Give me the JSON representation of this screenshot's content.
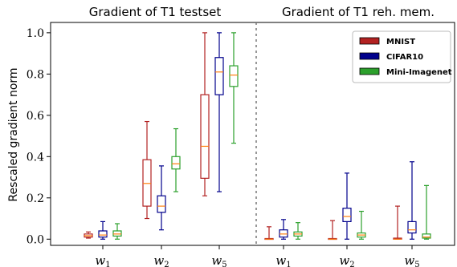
{
  "chart_data": {
    "type": "box",
    "titles": [
      "Gradient of T1 testset",
      "Gradient of T1 reh. mem."
    ],
    "ylabel": "Rescaled gradient norm",
    "ylim": [
      -0.03,
      1.05
    ],
    "yticks": [
      "0.0",
      "0.2",
      "0.4",
      "0.6",
      "0.8",
      "1.0"
    ],
    "ytick_values": [
      0.0,
      0.2,
      0.4,
      0.6,
      0.8,
      1.0
    ],
    "groups": [
      {
        "panel": 0,
        "label": "w",
        "sub": "1"
      },
      {
        "panel": 0,
        "label": "w",
        "sub": "2"
      },
      {
        "panel": 0,
        "label": "w",
        "sub": "5"
      },
      {
        "panel": 1,
        "label": "w",
        "sub": "1"
      },
      {
        "panel": 1,
        "label": "w",
        "sub": "2"
      },
      {
        "panel": 1,
        "label": "w",
        "sub": "5"
      }
    ],
    "series": [
      {
        "name": "MNIST",
        "color": "#b22222",
        "boxes": [
          {
            "whislo": 0.005,
            "q1": 0.01,
            "med": 0.017,
            "q3": 0.025,
            "whishi": 0.035
          },
          {
            "whislo": 0.1,
            "q1": 0.16,
            "med": 0.27,
            "q3": 0.385,
            "whishi": 0.57
          },
          {
            "whislo": 0.21,
            "q1": 0.295,
            "med": 0.45,
            "q3": 0.7,
            "whishi": 1.0
          },
          {
            "whislo": 0.0,
            "q1": 0.0,
            "med": 0.0,
            "q3": 0.003,
            "whishi": 0.06
          },
          {
            "whislo": 0.0,
            "q1": 0.0,
            "med": 0.0,
            "q3": 0.003,
            "whishi": 0.09
          },
          {
            "whislo": 0.0,
            "q1": 0.0,
            "med": 0.0,
            "q3": 0.005,
            "whishi": 0.16
          }
        ]
      },
      {
        "name": "CIFAR10",
        "color": "#00008b",
        "boxes": [
          {
            "whislo": 0.0,
            "q1": 0.01,
            "med": 0.02,
            "q3": 0.04,
            "whishi": 0.085
          },
          {
            "whislo": 0.045,
            "q1": 0.13,
            "med": 0.16,
            "q3": 0.21,
            "whishi": 0.355
          },
          {
            "whislo": 0.23,
            "q1": 0.7,
            "med": 0.81,
            "q3": 0.88,
            "whishi": 1.0
          },
          {
            "whislo": 0.0,
            "q1": 0.01,
            "med": 0.025,
            "q3": 0.045,
            "whishi": 0.095
          },
          {
            "whislo": 0.0,
            "q1": 0.085,
            "med": 0.11,
            "q3": 0.15,
            "whishi": 0.32
          },
          {
            "whislo": 0.0,
            "q1": 0.03,
            "med": 0.045,
            "q3": 0.085,
            "whishi": 0.375
          }
        ]
      },
      {
        "name": "Mini-Imagenet",
        "color": "#2ca02c",
        "boxes": [
          {
            "whislo": 0.0,
            "q1": 0.015,
            "med": 0.025,
            "q3": 0.04,
            "whishi": 0.075
          },
          {
            "whislo": 0.23,
            "q1": 0.34,
            "med": 0.365,
            "q3": 0.4,
            "whishi": 0.535
          },
          {
            "whislo": 0.465,
            "q1": 0.74,
            "med": 0.795,
            "q3": 0.84,
            "whishi": 1.0
          },
          {
            "whislo": 0.0,
            "q1": 0.015,
            "med": 0.025,
            "q3": 0.035,
            "whishi": 0.08
          },
          {
            "whislo": 0.0,
            "q1": 0.01,
            "med": 0.02,
            "q3": 0.03,
            "whishi": 0.135
          },
          {
            "whislo": 0.0,
            "q1": 0.005,
            "med": 0.01,
            "q3": 0.025,
            "whishi": 0.26
          }
        ]
      }
    ],
    "median_color": "#ff7f0e",
    "separator": "dotted vertical line between panels",
    "legend_placement": "top-right",
    "grid": false
  }
}
